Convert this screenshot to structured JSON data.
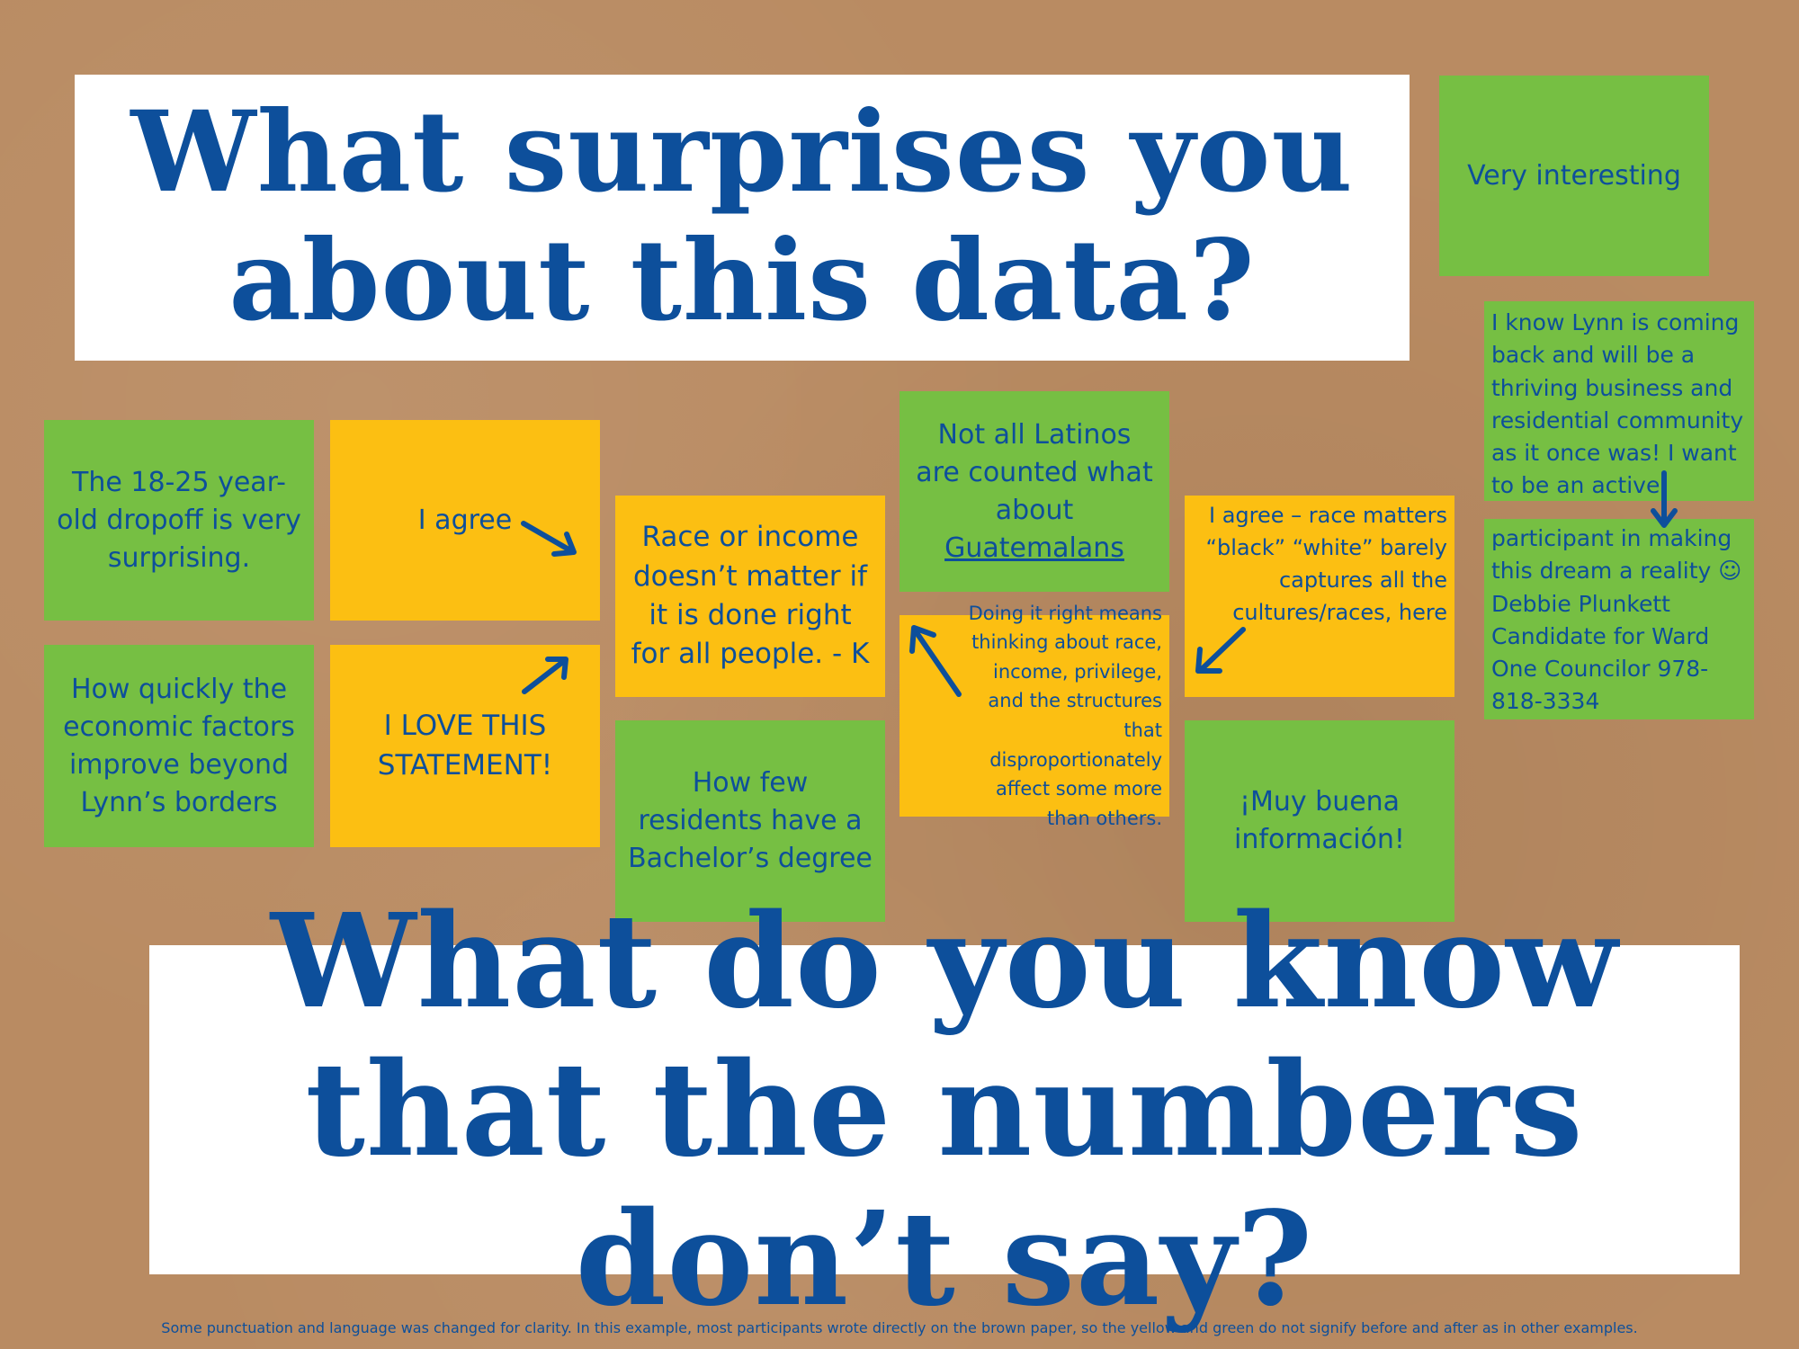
{
  "banners": {
    "top": "What surprises you about this data?",
    "bottom": "What do you know that the numbers don’t say?"
  },
  "notes": {
    "very_interesting": "Very interesting",
    "lynn_coming_back": "I know Lynn is coming back and will be a thriving business and residential community as it once was! I want to be an active",
    "participant": "participant in making this dream a reality ☺ Debbie Plunkett Candidate for Ward One Councilor 978-818-3334",
    "dropoff": "The 18-25 year-old dropoff is very surprising.",
    "quickly": "How quickly the economic factors improve beyond Lynn’s borders",
    "agree": "I agree",
    "love": "I LOVE THIS STATEMENT!",
    "race_income": "Race or income doesn’t matter if it is done right for all people. - K",
    "bachelor": "How few residents have a Bachelor’s degree",
    "latinos_prefix": "Not all Latinos are counted what about",
    "latinos_underlined": "Guatemalans",
    "doing_right": "Doing it right means thinking about race, income, privilege, and the structures that disproportionately affect some more than others.",
    "race_matters": "I agree – race matters “black” “white” barely captures all the cultures/races, here",
    "muy_buena": "¡Muy buena información!"
  },
  "footnote": "Some punctuation and language was changed for clarity. In this example, most participants wrote directly on the brown paper, so the yellow and green do not signify before and after as in other examples.",
  "colors": {
    "paper": "#b98b62",
    "text_blue": "#0d4f9b",
    "note_green": "#76bf43",
    "note_yellow": "#fcbf12"
  }
}
